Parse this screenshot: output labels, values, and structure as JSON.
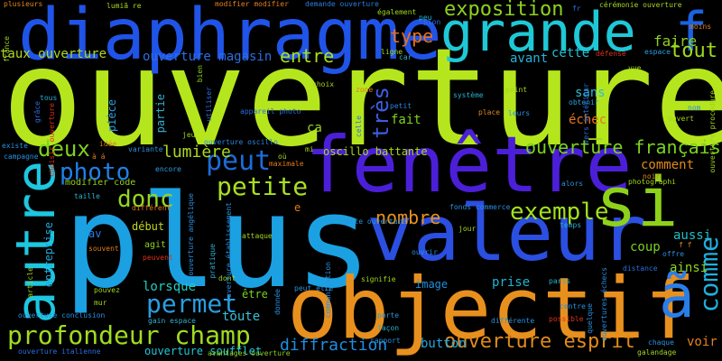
{
  "words": [
    {
      "text": "ouverture",
      "color": "#b5e61d"
    },
    {
      "text": "plus",
      "color": "#1ba1e2"
    },
    {
      "text": "diaphragme",
      "color": "#2054e8"
    },
    {
      "text": "fenêtre",
      "color": "#4b1fd8"
    },
    {
      "text": "valeur",
      "color": "#2b4fe0"
    },
    {
      "text": "objectif",
      "color": "#e8901e"
    },
    {
      "text": "grande",
      "color": "#1fc8d6"
    },
    {
      "text": "si",
      "color": "#8ed11a"
    },
    {
      "text": "autre",
      "color": "#1dc7e0"
    },
    {
      "text": "ã",
      "color": "#2a7ee8"
    },
    {
      "text": "f",
      "color": "#1b62e0"
    },
    {
      "text": "petite",
      "color": "#a8e020"
    },
    {
      "text": "photo",
      "color": "#1f80e8"
    },
    {
      "text": "profondeur champ",
      "color": "#a0dc20"
    },
    {
      "text": "peut",
      "color": "#1c6cd8"
    },
    {
      "text": "comme",
      "color": "#1fb0e0"
    },
    {
      "text": "exemple",
      "color": "#a4e01c"
    },
    {
      "text": "permet",
      "color": "#2a9de0"
    },
    {
      "text": "exposition",
      "color": "#8fd21e"
    },
    {
      "text": "ouverture française",
      "color": "#7ad41e"
    },
    {
      "text": "donc",
      "color": "#94d620"
    },
    {
      "text": "très",
      "color": "#3a5ee0"
    },
    {
      "text": "deux",
      "color": "#7ed21e"
    },
    {
      "text": "ouverture esprit",
      "color": "#e08a1c"
    },
    {
      "text": "type",
      "color": "#e8701a"
    },
    {
      "text": "entre",
      "color": "#a9e01e"
    },
    {
      "text": "tout",
      "color": "#9cdc1c"
    },
    {
      "text": "lumière",
      "color": "#a8d81e"
    },
    {
      "text": "nombre",
      "color": "#e8921c"
    },
    {
      "text": "diffraction",
      "color": "#1f8ee0"
    },
    {
      "text": "ouverture magasin",
      "color": "#2c6ee0"
    },
    {
      "text": "taux ouverture",
      "color": "#b0d820"
    },
    {
      "text": "faire",
      "color": "#8ed020"
    },
    {
      "text": "avant",
      "color": "#2ab0d8"
    },
    {
      "text": "cette",
      "color": "#20c0d0"
    },
    {
      "text": "sans",
      "color": "#2abcd8"
    },
    {
      "text": "échec",
      "color": "#e6761c"
    },
    {
      "text": "comment",
      "color": "#e28a1c"
    },
    {
      "text": "lorsque",
      "color": "#1fd0c0"
    },
    {
      "text": "toute",
      "color": "#38c0d8"
    },
    {
      "text": "prise",
      "color": "#1fb4d4"
    },
    {
      "text": "button",
      "color": "#20a8e0"
    },
    {
      "text": "ouverture soufflet",
      "color": "#20c8d8"
    },
    {
      "text": "voir",
      "color": "#e6801c"
    },
    {
      "text": "ainsi",
      "color": "#8cd620"
    },
    {
      "text": "aussi",
      "color": "#1fc0c8"
    },
    {
      "text": "coup",
      "color": "#7ad01e"
    },
    {
      "text": "image",
      "color": "#2090e0"
    },
    {
      "text": "être",
      "color": "#7ad020"
    },
    {
      "text": "ca",
      "color": "#9cd81c"
    },
    {
      "text": "fait",
      "color": "#7ed21e"
    },
    {
      "text": "début",
      "color": "#c0d81e"
    },
    {
      "text": "av",
      "color": "#2a78e0"
    },
    {
      "text": "agit",
      "color": "#90d020"
    },
    {
      "text": "e",
      "color": "#e07a1c"
    },
    {
      "text": "pièce",
      "color": "#2aa0e0"
    },
    {
      "text": "partie",
      "color": "#30b0d0"
    },
    {
      "text": "entreprise",
      "color": "#20a8d8"
    },
    {
      "text": "cette ouverture",
      "color": "#2a90e0"
    },
    {
      "text": "modifier code",
      "color": "#90d020"
    },
    {
      "text": "ouverture oscillo",
      "color": "#2a86e0"
    },
    {
      "text": "oscillo battante",
      "color": "#a8d81e"
    },
    {
      "text": "ouverture conclusion",
      "color": "#2a90e0"
    },
    {
      "text": "ouverture italienne",
      "color": "#2a6ee0"
    },
    {
      "text": "avantages ouverture",
      "color": "#8cd020"
    },
    {
      "text": "gain espace",
      "color": "#30b0d0"
    },
    {
      "text": "plusieurs",
      "color": "#e2861c"
    },
    {
      "text": "lumiã re",
      "color": "#a8d81e"
    },
    {
      "text": "modifier modifier",
      "color": "#e8801c"
    },
    {
      "text": "demande ouverture",
      "color": "#2a7ee0"
    },
    {
      "text": "également",
      "color": "#a0d41e"
    },
    {
      "text": "peu",
      "color": "#2ab0d0"
    },
    {
      "text": "fr",
      "color": "#2a6ee0"
    },
    {
      "text": "cérémonie ouverture",
      "color": "#a0d41e"
    },
    {
      "text": "moins",
      "color": "#e07a1c"
    },
    {
      "text": "défense",
      "color": "#e0301c"
    },
    {
      "text": "espace",
      "color": "#2aa0e0"
    },
    {
      "text": "ligne",
      "color": "#a0d41e"
    },
    {
      "text": "car",
      "color": "#30b0d0"
    },
    {
      "text": "pion",
      "color": "#2a6ee0"
    },
    {
      "text": "bien",
      "color": "#8cd020"
    },
    {
      "text": "zone",
      "color": "#e07a1c"
    },
    {
      "text": "petit",
      "color": "#2a86e0"
    },
    {
      "text": "système",
      "color": "#2ab0d0"
    },
    {
      "text": "point",
      "color": "#a0d41e"
    },
    {
      "text": "place",
      "color": "#e2861c"
    },
    {
      "text": "leurs",
      "color": "#2a90e0"
    },
    {
      "text": "obtenir",
      "color": "#2aa0e0"
    },
    {
      "text": "nom",
      "color": "#2a90e0"
    },
    {
      "text": "ouvert",
      "color": "#a0d41e"
    },
    {
      "text": "choix",
      "color": "#a0d41e"
    },
    {
      "text": "appareil photo",
      "color": "#2a6ee0"
    },
    {
      "text": "jeu",
      "color": "#a0d41e"
    },
    {
      "text": "tous",
      "color": "#2ab0d0"
    },
    {
      "text": "existe",
      "color": "#2a90e0"
    },
    {
      "text": "campagne",
      "color": "#2a90e0"
    },
    {
      "text": "idée",
      "color": "#e07a1c"
    },
    {
      "text": "à á",
      "color": "#e07a1c"
    },
    {
      "text": "variante",
      "color": "#2a90e0"
    },
    {
      "text": "mi",
      "color": "#a0d41e"
    },
    {
      "text": "encore",
      "color": "#2aa0e0"
    },
    {
      "text": "maximale",
      "color": "#e07a1c"
    },
    {
      "text": "où",
      "color": "#a0d41e"
    },
    {
      "text": "noir",
      "color": "#e2861c"
    },
    {
      "text": "alors",
      "color": "#2a90e0"
    },
    {
      "text": "photographi",
      "color": "#a0d41e"
    },
    {
      "text": "taille",
      "color": "#2ab0d0"
    },
    {
      "text": "différent",
      "color": "#e07a1c"
    },
    {
      "text": "fonds commerce",
      "color": "#2a90e0"
    },
    {
      "text": "temps",
      "color": "#2ab0d0"
    },
    {
      "text": "jour",
      "color": "#a0d41e"
    },
    {
      "text": "attaque",
      "color": "#a0d41e"
    },
    {
      "text": "ouvrir",
      "color": "#2a90e0"
    },
    {
      "text": "offre",
      "color": "#2a90e0"
    },
    {
      "text": "f f",
      "color": "#e2861c"
    },
    {
      "text": "peuvent",
      "color": "#e0301c"
    },
    {
      "text": "souvent",
      "color": "#e07a1c"
    },
    {
      "text": "signifie",
      "color": "#a0d41e"
    },
    {
      "text": "paris",
      "color": "#2ab0d0"
    },
    {
      "text": "distance",
      "color": "#2a6ee0"
    },
    {
      "text": "pouvez",
      "color": "#a0d41e"
    },
    {
      "text": "dont",
      "color": "#a0d41e"
    },
    {
      "text": "peut être",
      "color": "#2a90e0"
    },
    {
      "text": "centre",
      "color": "#2a90e0"
    },
    {
      "text": "mur",
      "color": "#a0d41e"
    },
    {
      "text": "porte",
      "color": "#2a90e0"
    },
    {
      "text": "façon",
      "color": "#2ab0d0"
    },
    {
      "text": "rapport",
      "color": "#2a90e0"
    },
    {
      "text": "possible",
      "color": "#e0301c"
    },
    {
      "text": "différente",
      "color": "#2a90e0"
    },
    {
      "text": "chaque",
      "color": "#2a90e0"
    },
    {
      "text": "galandage",
      "color": "#a0d41e"
    },
    {
      "text": "ouvertures échecs",
      "color": "#2a90e0"
    },
    {
      "text": "utiliser",
      "color": "#2a6ee0"
    },
    {
      "text": "grâce",
      "color": "#2a6ee0"
    },
    {
      "text": "choisir ouverture",
      "color": "#e0301c"
    },
    {
      "text": "france",
      "color": "#a0d41e"
    },
    {
      "text": "article",
      "color": "#a0d41e"
    },
    {
      "text": "celle",
      "color": "#2a6ee0"
    },
    {
      "text": "vers intérieur",
      "color": "#2a6ee0"
    },
    {
      "text": "ouverture angélique",
      "color": "#2a90e0"
    },
    {
      "text": "ouverture établissement",
      "color": "#2a90e0"
    },
    {
      "text": "pratique",
      "color": "#2ab0d0"
    },
    {
      "text": "communication",
      "color": "#2a90e0"
    },
    {
      "text": "donnée",
      "color": "#2a90e0"
    },
    {
      "text": "ouverture procédure",
      "color": "#a0d41e"
    },
    {
      "text": "quelque",
      "color": "#2a90e0"
    },
    {
      "text": "vue",
      "color": "#a0d41e"
    },
    {
      "text": "–",
      "color": "#a0d41e"
    }
  ]
}
